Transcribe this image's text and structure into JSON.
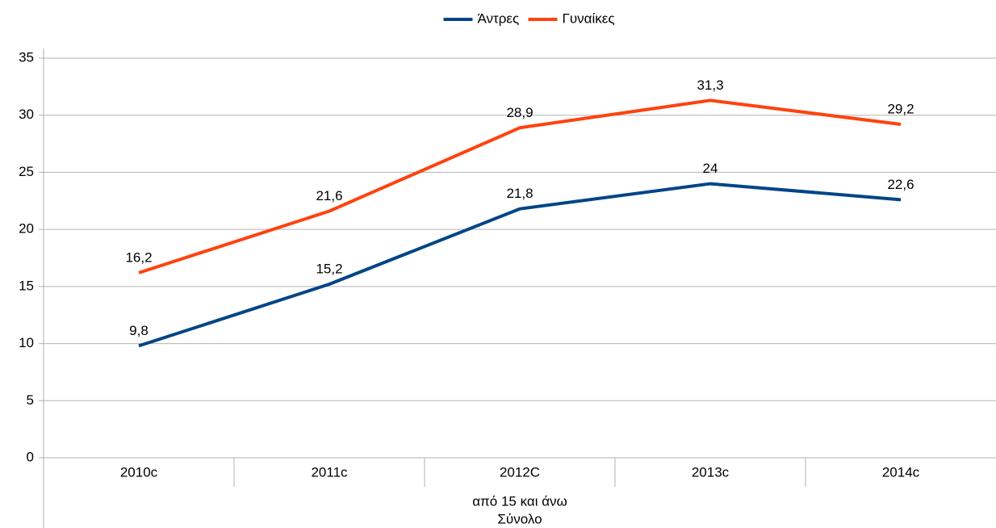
{
  "chart_data": {
    "type": "line",
    "categories": [
      "2010c",
      "2011c",
      "2012C",
      "2013c",
      "2014c"
    ],
    "x_group_labels": [
      "από 15 και άνω",
      "Σύνολο"
    ],
    "series": [
      {
        "name": "Άντρες",
        "color": "#004586",
        "values": [
          9.8,
          15.2,
          21.8,
          24,
          22.6
        ],
        "value_labels": [
          "9,8",
          "15,2",
          "21,8",
          "24",
          "22,6"
        ]
      },
      {
        "name": "Γυναίκες",
        "color": "#ff420e",
        "values": [
          16.2,
          21.6,
          28.9,
          31.3,
          29.2
        ],
        "value_labels": [
          "16,2",
          "21,6",
          "28,9",
          "31,3",
          "29,2"
        ]
      }
    ],
    "ylim": [
      0,
      35
    ],
    "yticks": [
      0,
      5,
      10,
      15,
      20,
      25,
      30,
      35
    ],
    "grid": true,
    "legend": "top"
  }
}
